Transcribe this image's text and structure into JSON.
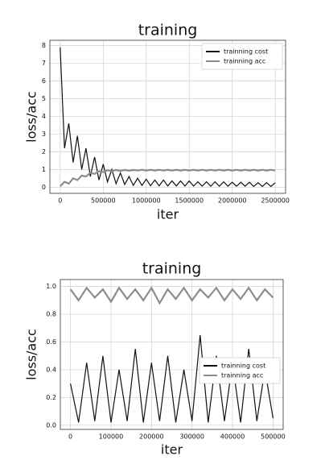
{
  "chart_data": [
    {
      "type": "line",
      "title": "training",
      "x_label": "iter",
      "y_label": "loss/acc",
      "x": [
        0,
        50000,
        100000,
        150000,
        200000,
        250000,
        300000,
        350000,
        400000,
        450000,
        500000,
        550000,
        600000,
        650000,
        700000,
        750000,
        800000,
        850000,
        900000,
        950000,
        1000000,
        1050000,
        1100000,
        1150000,
        1200000,
        1250000,
        1300000,
        1350000,
        1400000,
        1450000,
        1500000,
        1550000,
        1600000,
        1650000,
        1700000,
        1750000,
        1800000,
        1850000,
        1900000,
        1950000,
        2000000,
        2050000,
        2100000,
        2150000,
        2200000,
        2250000,
        2300000,
        2350000,
        2400000,
        2450000,
        2500000
      ],
      "series": [
        {
          "name": "trainning cost",
          "color": "#111111",
          "values": [
            7.9,
            2.2,
            3.6,
            1.4,
            2.9,
            1.0,
            2.2,
            0.6,
            1.7,
            0.4,
            1.3,
            0.3,
            1.0,
            0.2,
            0.8,
            0.15,
            0.6,
            0.1,
            0.5,
            0.1,
            0.45,
            0.08,
            0.4,
            0.08,
            0.4,
            0.07,
            0.35,
            0.07,
            0.35,
            0.06,
            0.35,
            0.06,
            0.3,
            0.06,
            0.3,
            0.05,
            0.3,
            0.05,
            0.3,
            0.05,
            0.28,
            0.05,
            0.28,
            0.05,
            0.28,
            0.04,
            0.25,
            0.04,
            0.25,
            0.04,
            0.25
          ]
        },
        {
          "name": "trainning acc",
          "color": "#8c8c8c",
          "values": [
            0.05,
            0.3,
            0.2,
            0.5,
            0.4,
            0.65,
            0.6,
            0.8,
            0.75,
            0.9,
            0.85,
            0.95,
            0.9,
            0.97,
            0.92,
            0.97,
            0.93,
            0.97,
            0.94,
            0.98,
            0.94,
            0.98,
            0.94,
            0.98,
            0.94,
            0.98,
            0.94,
            0.98,
            0.94,
            0.98,
            0.94,
            0.98,
            0.94,
            0.98,
            0.94,
            0.98,
            0.94,
            0.98,
            0.94,
            0.98,
            0.94,
            0.98,
            0.94,
            0.98,
            0.94,
            0.98,
            0.94,
            0.98,
            0.94,
            0.98,
            0.94
          ]
        }
      ],
      "xlim": [
        -120000,
        2620000
      ],
      "xticks": [
        0,
        500000,
        1000000,
        1500000,
        2000000,
        2500000
      ],
      "ylim": [
        -0.35,
        8.3
      ],
      "yticks": [
        0,
        1,
        2,
        3,
        4,
        5,
        6,
        7,
        8
      ],
      "grid": true,
      "legend": "upper right"
    },
    {
      "type": "line",
      "title": "training",
      "x_label": "iter",
      "y_label": "loss/acc",
      "x": [
        0,
        20000,
        40000,
        60000,
        80000,
        100000,
        120000,
        140000,
        160000,
        180000,
        200000,
        220000,
        240000,
        260000,
        280000,
        300000,
        320000,
        340000,
        360000,
        380000,
        400000,
        420000,
        440000,
        460000,
        480000,
        500000
      ],
      "series": [
        {
          "name": "trainning cost",
          "color": "#111111",
          "values": [
            0.3,
            0.02,
            0.45,
            0.03,
            0.5,
            0.02,
            0.4,
            0.03,
            0.55,
            0.02,
            0.45,
            0.03,
            0.5,
            0.02,
            0.4,
            0.03,
            0.65,
            0.02,
            0.5,
            0.03,
            0.45,
            0.02,
            0.55,
            0.03,
            0.4,
            0.05
          ]
        },
        {
          "name": "trainning acc",
          "color": "#8c8c8c",
          "values": [
            0.98,
            0.9,
            0.99,
            0.92,
            0.98,
            0.89,
            0.99,
            0.91,
            0.98,
            0.9,
            0.99,
            0.88,
            0.98,
            0.91,
            0.99,
            0.9,
            0.98,
            0.92,
            0.99,
            0.9,
            0.98,
            0.91,
            0.99,
            0.9,
            0.98,
            0.92
          ]
        }
      ],
      "xlim": [
        -25000,
        525000
      ],
      "xticks": [
        0,
        100000,
        200000,
        300000,
        400000,
        500000
      ],
      "ylim": [
        -0.03,
        1.05
      ],
      "yticks": [
        {
          "value": 0,
          "label": "0.0"
        },
        0.2,
        0.4,
        0.6,
        0.8,
        {
          "value": 1,
          "label": "1.0"
        }
      ],
      "grid": true,
      "legend": "center right"
    }
  ]
}
